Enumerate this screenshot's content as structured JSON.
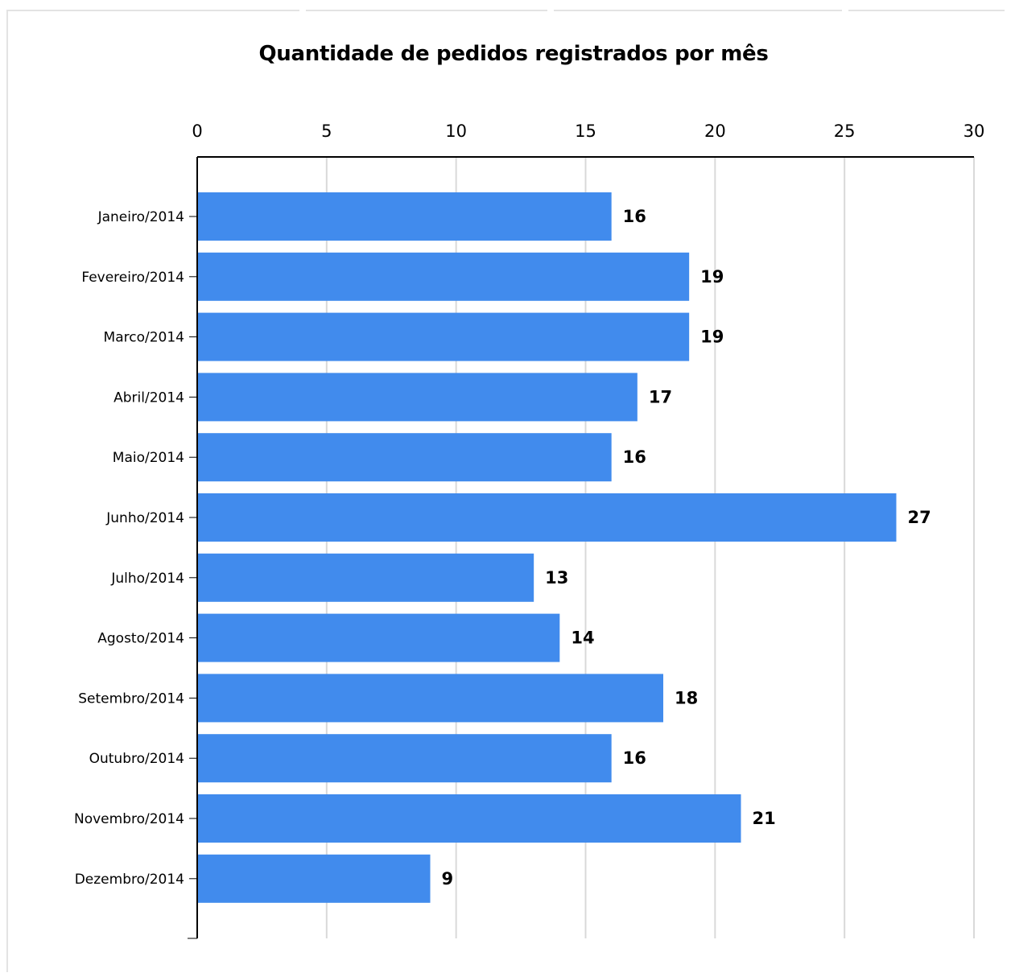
{
  "chart_data": {
    "type": "bar",
    "orientation": "horizontal",
    "title": "Quantidade de pedidos registrados por mês",
    "xlabel": "",
    "ylabel": "",
    "categories": [
      "Janeiro/2014",
      "Fevereiro/2014",
      "Marco/2014",
      "Abril/2014",
      "Maio/2014",
      "Junho/2014",
      "Julho/2014",
      "Agosto/2014",
      "Setembro/2014",
      "Outubro/2014",
      "Novembro/2014",
      "Dezembro/2014"
    ],
    "values": [
      16,
      19,
      19,
      17,
      16,
      27,
      13,
      14,
      18,
      16,
      21,
      9
    ],
    "xlim": [
      0,
      30
    ],
    "xticks": [
      0,
      5,
      10,
      15,
      20,
      25,
      30
    ],
    "axis_position": "top",
    "grid": true,
    "data_labels": true,
    "bar_color": "#418bed",
    "grid_color": "#d9d9d9"
  }
}
